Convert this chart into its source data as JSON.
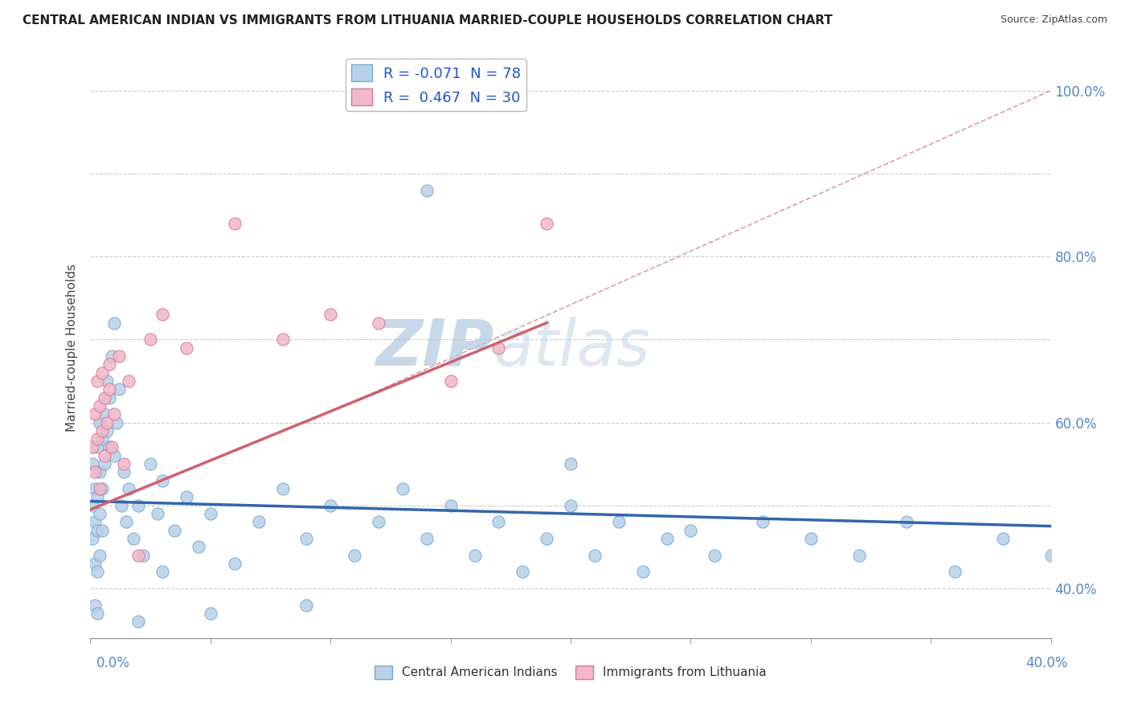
{
  "title": "CENTRAL AMERICAN INDIAN VS IMMIGRANTS FROM LITHUANIA MARRIED-COUPLE HOUSEHOLDS CORRELATION CHART",
  "source": "Source: ZipAtlas.com",
  "ylabel": "Married-couple Households",
  "legend_label1": "Central American Indians",
  "legend_label2": "Immigrants from Lithuania",
  "blue_color": "#b8d0e8",
  "blue_edge_color": "#7aaad0",
  "pink_color": "#f0b8c8",
  "pink_edge_color": "#d87898",
  "blue_line_color": "#3366aa",
  "pink_line_color": "#d06070",
  "ref_line_color": "#d08898",
  "watermark_color": "#c8ddf0",
  "R_blue": -0.071,
  "N_blue": 78,
  "R_pink": 0.467,
  "N_pink": 30,
  "xlim": [
    0.0,
    0.4
  ],
  "ylim": [
    0.34,
    1.04
  ],
  "blue_trend_x0": 0.0,
  "blue_trend_y0": 0.505,
  "blue_trend_x1": 0.4,
  "blue_trend_y1": 0.475,
  "pink_trend_x0": 0.0,
  "pink_trend_y0": 0.495,
  "pink_trend_x1": 0.19,
  "pink_trend_y1": 0.72,
  "ref_line_x0": 0.09,
  "ref_line_y0": 0.6,
  "ref_line_x1": 0.4,
  "ref_line_y1": 1.0,
  "blue_x": [
    0.001,
    0.001,
    0.001,
    0.002,
    0.002,
    0.002,
    0.002,
    0.003,
    0.003,
    0.003,
    0.003,
    0.003,
    0.004,
    0.004,
    0.004,
    0.004,
    0.005,
    0.005,
    0.005,
    0.006,
    0.006,
    0.007,
    0.007,
    0.008,
    0.008,
    0.009,
    0.01,
    0.01,
    0.011,
    0.012,
    0.013,
    0.014,
    0.015,
    0.016,
    0.018,
    0.02,
    0.022,
    0.025,
    0.028,
    0.03,
    0.035,
    0.04,
    0.045,
    0.05,
    0.06,
    0.07,
    0.08,
    0.09,
    0.1,
    0.11,
    0.12,
    0.13,
    0.14,
    0.15,
    0.16,
    0.17,
    0.18,
    0.19,
    0.2,
    0.21,
    0.22,
    0.23,
    0.24,
    0.26,
    0.28,
    0.3,
    0.32,
    0.34,
    0.36,
    0.38,
    0.4,
    0.14,
    0.2,
    0.25,
    0.09,
    0.05,
    0.03,
    0.02
  ],
  "blue_y": [
    0.55,
    0.5,
    0.46,
    0.52,
    0.48,
    0.43,
    0.38,
    0.57,
    0.51,
    0.47,
    0.42,
    0.37,
    0.6,
    0.54,
    0.49,
    0.44,
    0.58,
    0.52,
    0.47,
    0.61,
    0.55,
    0.65,
    0.59,
    0.63,
    0.57,
    0.68,
    0.72,
    0.56,
    0.6,
    0.64,
    0.5,
    0.54,
    0.48,
    0.52,
    0.46,
    0.5,
    0.44,
    0.55,
    0.49,
    0.53,
    0.47,
    0.51,
    0.45,
    0.49,
    0.43,
    0.48,
    0.52,
    0.46,
    0.5,
    0.44,
    0.48,
    0.52,
    0.46,
    0.5,
    0.44,
    0.48,
    0.42,
    0.46,
    0.5,
    0.44,
    0.48,
    0.42,
    0.46,
    0.44,
    0.48,
    0.46,
    0.44,
    0.48,
    0.42,
    0.46,
    0.44,
    0.88,
    0.55,
    0.47,
    0.38,
    0.37,
    0.42,
    0.36
  ],
  "pink_x": [
    0.001,
    0.002,
    0.002,
    0.003,
    0.003,
    0.004,
    0.004,
    0.005,
    0.005,
    0.006,
    0.006,
    0.007,
    0.008,
    0.008,
    0.009,
    0.01,
    0.012,
    0.014,
    0.016,
    0.02,
    0.025,
    0.03,
    0.04,
    0.06,
    0.08,
    0.1,
    0.12,
    0.15,
    0.17,
    0.19
  ],
  "pink_y": [
    0.57,
    0.54,
    0.61,
    0.58,
    0.65,
    0.52,
    0.62,
    0.59,
    0.66,
    0.56,
    0.63,
    0.6,
    0.67,
    0.64,
    0.57,
    0.61,
    0.68,
    0.55,
    0.65,
    0.44,
    0.7,
    0.73,
    0.69,
    0.84,
    0.7,
    0.73,
    0.72,
    0.65,
    0.69,
    0.84
  ]
}
